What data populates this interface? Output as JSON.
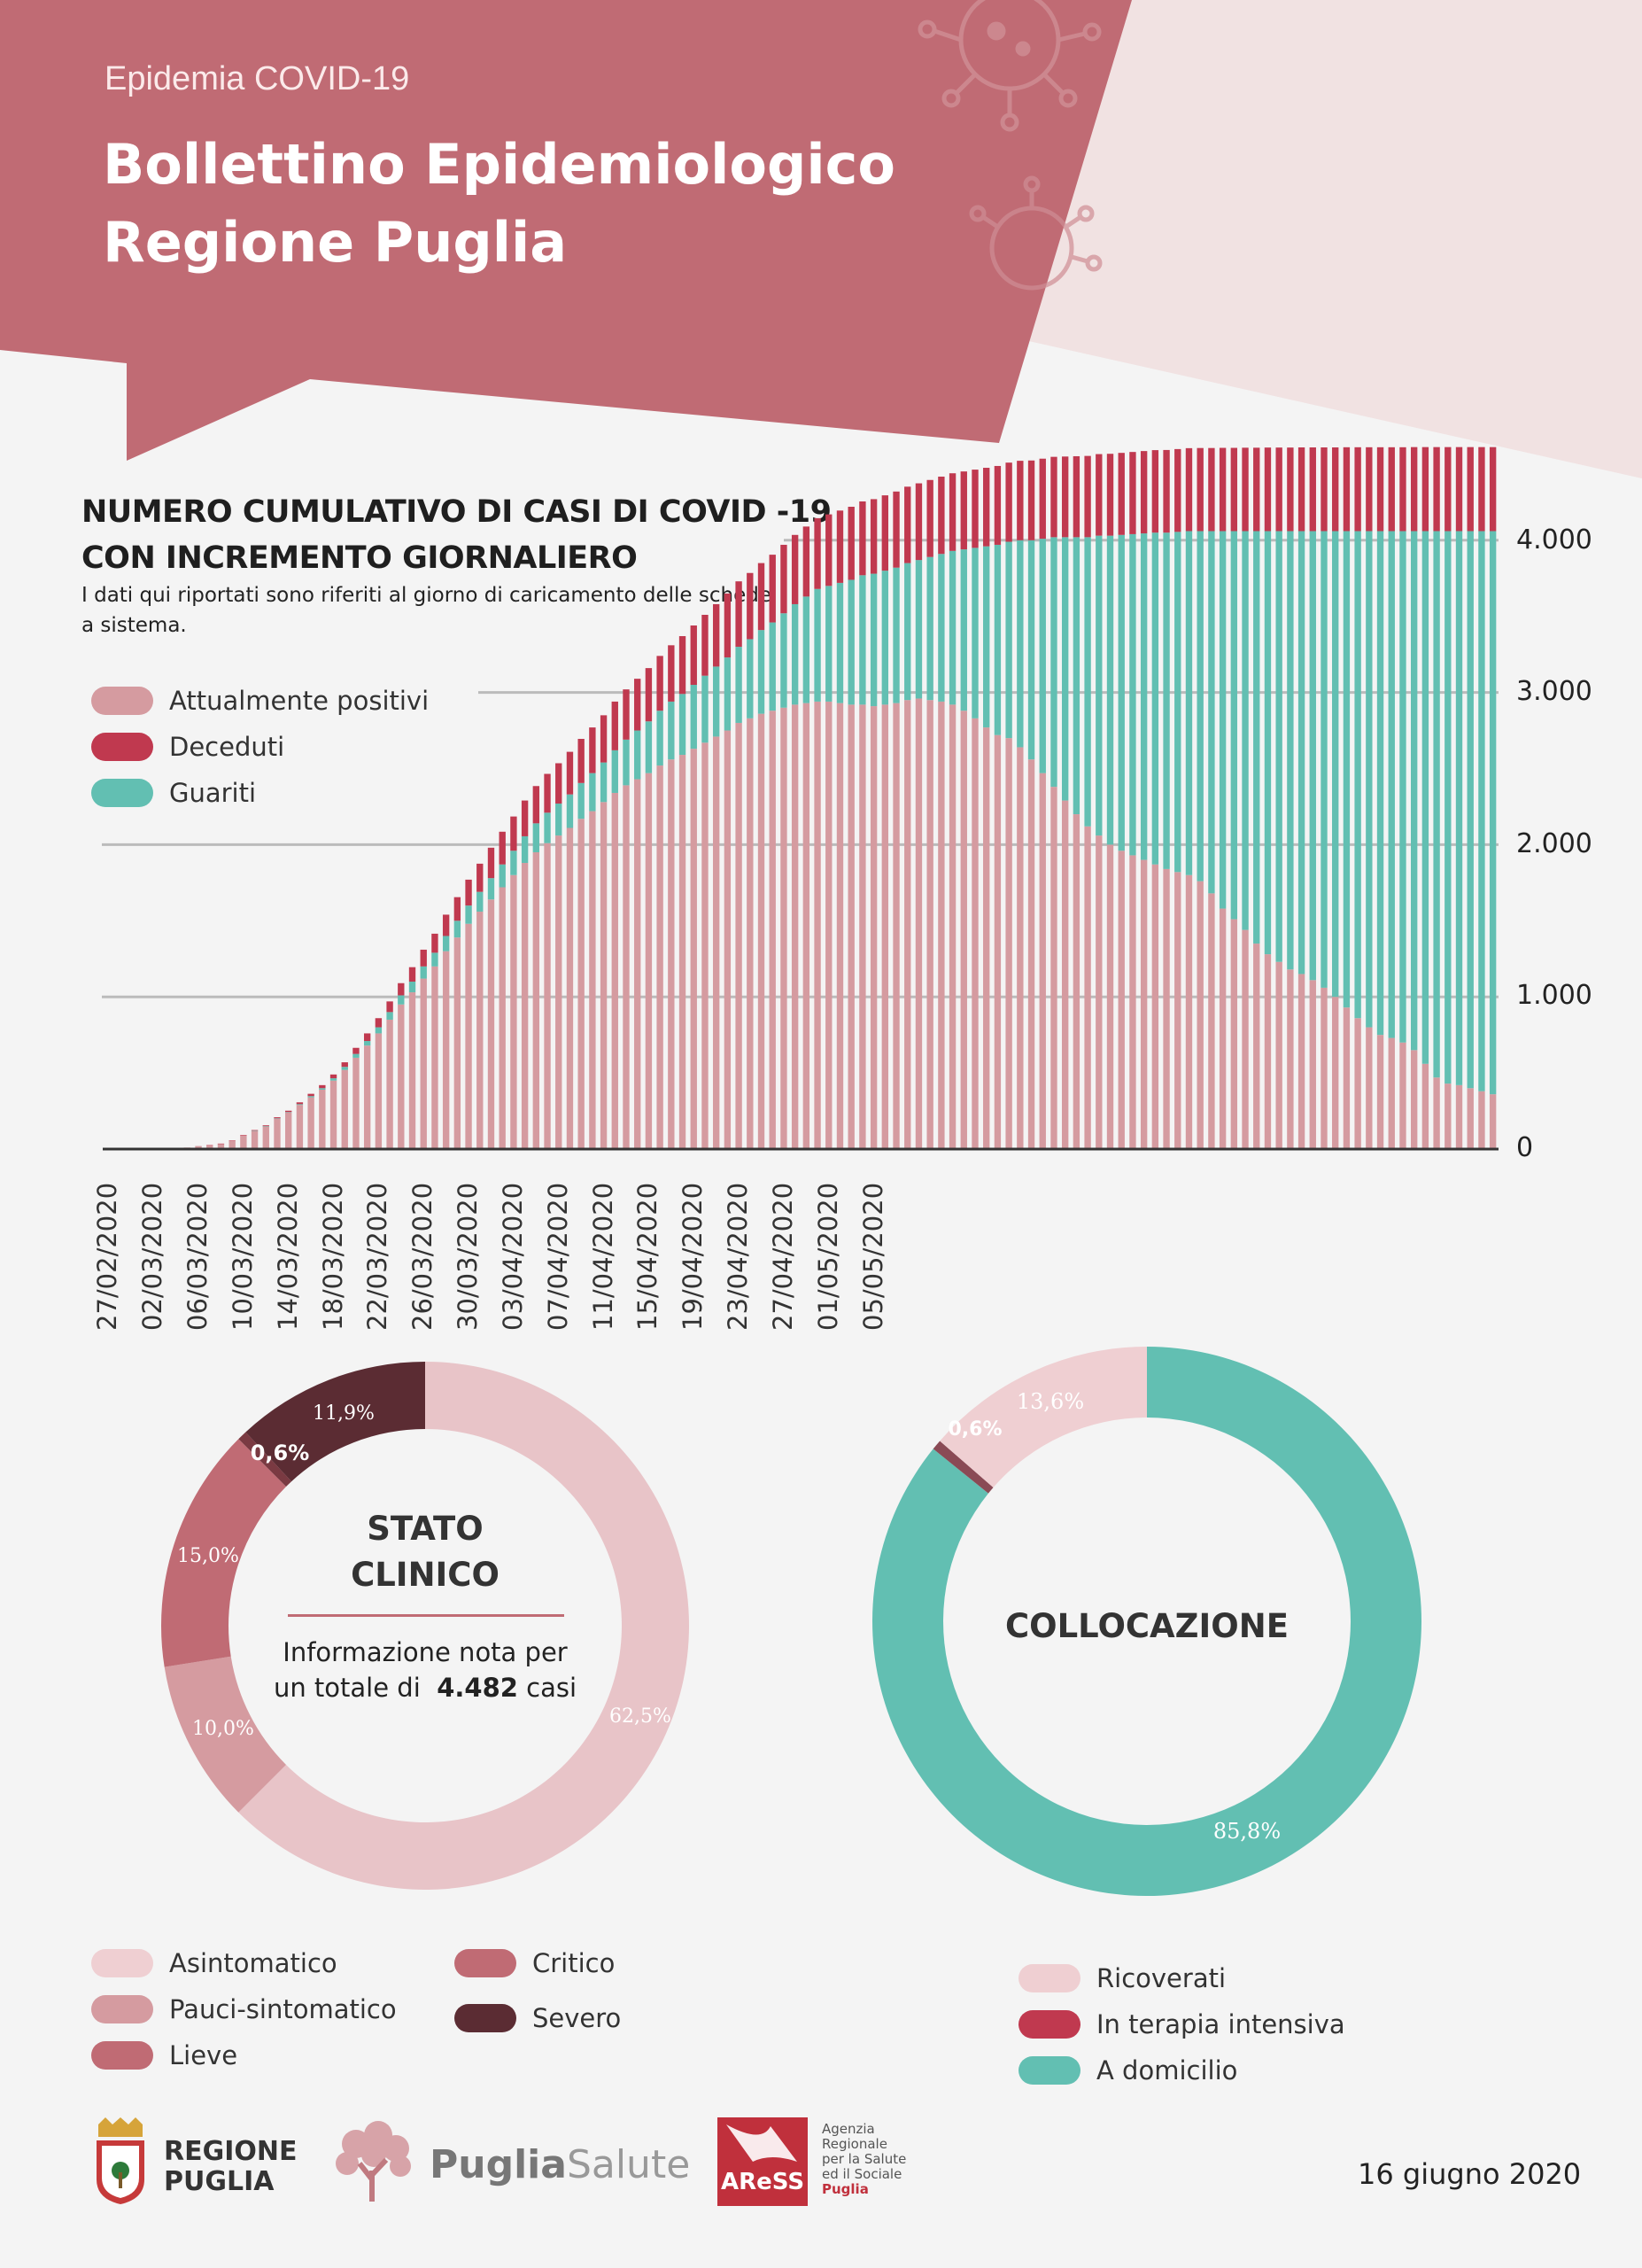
{
  "header": {
    "pre_title": "Epidemia COVID-19",
    "title_line1": "Bollettino Epidemiologico",
    "title_line2": "Regione Puglia"
  },
  "colors": {
    "banner": "#c06b74",
    "attualmente_positivi": "#d59ba0",
    "deceduti": "#c0394f",
    "guariti": "#62bfb2",
    "asintomatico": "#e8c4c8",
    "pauci": "#d59ba0",
    "lieve": "#c06b74",
    "critico": "#c06b74",
    "severo": "#5b2c33"
  },
  "cumulative_section": {
    "title_line1": "NUMERO CUMULATIVO DI CASI DI COVID -19",
    "title_line2": "CON INCREMENTO GIORNALIERO",
    "subtitle": "I dati qui riportati sono riferiti al giorno di caricamento delle schede a sistema.",
    "legend": [
      "Attualmente positivi",
      "Deceduti",
      "Guariti"
    ],
    "y_tick_labels": [
      "0",
      "1.000",
      "2.000",
      "3.000",
      "4.000"
    ],
    "x_tick_labels": [
      "27/02/2020",
      "02/03/2020",
      "06/03/2020",
      "10/03/2020",
      "14/03/2020",
      "18/03/2020",
      "22/03/2020",
      "26/03/2020",
      "30/03/2020",
      "03/04/2020",
      "07/04/2020",
      "11/04/2020",
      "15/04/2020",
      "19/04/2020",
      "23/04/2020",
      "27/04/2020",
      "01/05/2020",
      "05/05/2020"
    ]
  },
  "chart_data": [
    {
      "type": "bar",
      "stacked": true,
      "title": "NUMERO CUMULATIVO DI CASI DI COVID -19 CON INCREMENTO GIORNALIERO",
      "ylim": [
        0,
        4500
      ],
      "grid": true,
      "legend_position": "top-left",
      "y_ticks": [
        0,
        1000,
        2000,
        3000,
        4000
      ],
      "x_start": "27/02/2020",
      "x_end": "16/06/2020",
      "series": [
        {
          "name": "Attualmente positivi",
          "values": [
            1,
            1,
            1,
            1,
            1,
            1,
            1,
            10,
            20,
            25,
            35,
            55,
            90,
            120,
            150,
            200,
            240,
            290,
            340,
            390,
            450,
            520,
            600,
            680,
            760,
            850,
            950,
            1030,
            1120,
            1200,
            1300,
            1390,
            1480,
            1560,
            1640,
            1720,
            1800,
            1880,
            1950,
            2010,
            2060,
            2110,
            2170,
            2220,
            2280,
            2340,
            2390,
            2430,
            2470,
            2520,
            2560,
            2590,
            2630,
            2670,
            2710,
            2750,
            2800,
            2830,
            2860,
            2880,
            2900,
            2920,
            2930,
            2940,
            2940,
            2930,
            2920,
            2920,
            2910,
            2920,
            2930,
            2950,
            2960,
            2950,
            2940,
            2920,
            2880,
            2830,
            2770,
            2720,
            2700,
            2640,
            2560,
            2470,
            2380,
            2290,
            2200,
            2120,
            2060,
            2000,
            1960,
            1930,
            1900,
            1870,
            1840,
            1820,
            1800,
            1760,
            1680,
            1580,
            1510,
            1440,
            1350,
            1280,
            1230,
            1180,
            1150,
            1110,
            1060,
            1000,
            930,
            860,
            800,
            750,
            730,
            700,
            650,
            560,
            470,
            430,
            420,
            400,
            380,
            360
          ]
        },
        {
          "name": "Deceduti",
          "values": [
            0,
            0,
            0,
            0,
            0,
            0,
            0,
            0,
            0,
            1,
            1,
            2,
            3,
            4,
            5,
            7,
            9,
            12,
            15,
            20,
            25,
            30,
            40,
            50,
            60,
            70,
            80,
            95,
            110,
            125,
            140,
            155,
            170,
            185,
            200,
            215,
            225,
            235,
            245,
            255,
            265,
            280,
            290,
            300,
            310,
            320,
            330,
            340,
            350,
            360,
            370,
            380,
            390,
            400,
            410,
            420,
            430,
            435,
            440,
            445,
            450,
            455,
            460,
            465,
            470,
            475,
            480,
            485,
            490,
            495,
            500,
            502,
            504,
            506,
            508,
            510,
            512,
            514,
            516,
            518,
            520,
            522,
            524,
            526,
            528,
            530,
            532,
            534,
            536,
            538,
            539,
            540,
            541,
            542,
            543,
            544,
            545,
            546,
            546,
            547,
            547,
            548,
            548,
            549,
            549,
            549,
            550,
            550,
            550,
            550,
            551,
            551,
            551,
            551,
            551,
            551,
            552,
            552,
            552,
            552,
            552,
            552,
            552,
            552
          ]
        },
        {
          "name": "Guariti",
          "values": [
            0,
            0,
            0,
            0,
            0,
            0,
            0,
            0,
            0,
            0,
            0,
            0,
            0,
            1,
            1,
            2,
            3,
            5,
            8,
            10,
            15,
            20,
            25,
            30,
            40,
            50,
            60,
            70,
            80,
            90,
            100,
            110,
            120,
            130,
            140,
            150,
            160,
            175,
            190,
            200,
            210,
            220,
            235,
            250,
            260,
            280,
            300,
            320,
            340,
            360,
            380,
            400,
            420,
            440,
            460,
            480,
            500,
            520,
            550,
            580,
            620,
            660,
            700,
            740,
            760,
            790,
            820,
            850,
            870,
            880,
            890,
            900,
            910,
            940,
            970,
            1010,
            1060,
            1120,
            1190,
            1250,
            1290,
            1360,
            1440,
            1540,
            1640,
            1730,
            1820,
            1900,
            1970,
            2030,
            2075,
            2110,
            2145,
            2180,
            2210,
            2235,
            2260,
            2300,
            2380,
            2480,
            2550,
            2620,
            2710,
            2780,
            2830,
            2880,
            2910,
            2950,
            3000,
            3060,
            3130,
            3200,
            3260,
            3310,
            3330,
            3360,
            3410,
            3500,
            3590,
            3630,
            3640,
            3660,
            3680,
            3700
          ]
        }
      ]
    },
    {
      "type": "pie",
      "donut": true,
      "title": "STATO CLINICO",
      "categories": [
        "Asintomatico",
        "Pauci-sintomatico",
        "Lieve",
        "Critico",
        "Severo"
      ],
      "values": [
        62.5,
        10.0,
        15.0,
        0.6,
        11.9
      ],
      "value_labels": [
        "62,5%",
        "10,0%",
        "15,0%",
        "0,6%",
        "11,9%"
      ]
    },
    {
      "type": "pie",
      "donut": true,
      "title": "COLLOCAZIONE",
      "categories": [
        "Ricoverati",
        "In terapia intensiva",
        "A domicilio"
      ],
      "values": [
        13.6,
        0.6,
        85.8
      ],
      "value_labels": [
        "13,6%",
        "0,6%",
        "85,8%"
      ]
    }
  ],
  "donut1": {
    "title_line1": "STATO",
    "title_line2": "CLINICO",
    "info_line1": "Informazione nota per",
    "info_line2_pre": "un totale di",
    "info_total": "4.482",
    "info_line2_post": "casi",
    "legend_col1": [
      "Asintomatico",
      "Pauci-sintomatico",
      "Lieve"
    ],
    "legend_col2": [
      "Critico",
      "Severo"
    ]
  },
  "donut2": {
    "title": "COLLOCAZIONE",
    "legend": [
      "Ricoverati",
      "In terapia intensiva",
      "A domicilio"
    ]
  },
  "footer": {
    "regione_line1": "REGIONE",
    "regione_line2": "PUGLIA",
    "puglia": "Puglia",
    "salute": "Salute",
    "aress": "AReSS",
    "agenzia_lines": [
      "Agenzia",
      "Regionale",
      "per la Salute",
      "ed il Sociale",
      "Puglia"
    ],
    "date": "16 giugno 2020"
  }
}
